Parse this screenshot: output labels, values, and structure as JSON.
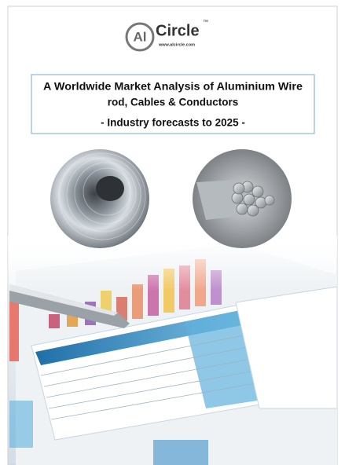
{
  "logo": {
    "mark": "Al",
    "name": "Circle",
    "trademark": "™",
    "url": "www.alcircle.com"
  },
  "title": {
    "lines": [
      "A Worldwide Market Analysis of Aluminium Wire",
      "rod, Cables & Conductors"
    ],
    "subtitle": "- Industry forecasts to 2025 -"
  }
}
